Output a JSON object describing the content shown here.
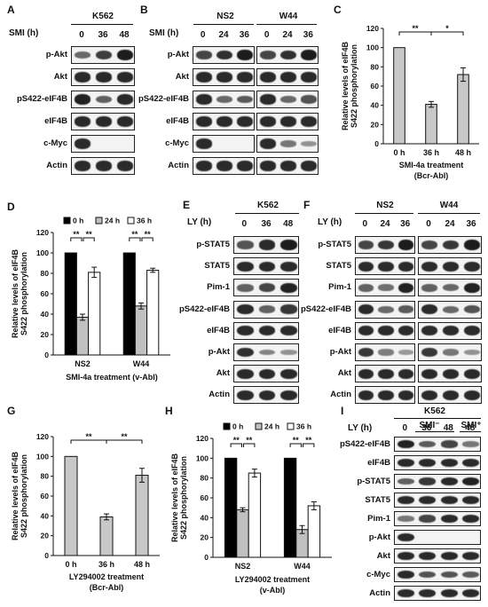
{
  "panels": {
    "A": {
      "letter": "A",
      "cell_line": "K562",
      "time_label": "SMI (h)",
      "times": [
        "0",
        "36",
        "48"
      ],
      "rows": [
        {
          "label": "p-Akt",
          "bands": [
            0.45,
            0.75,
            1.0
          ]
        },
        {
          "label": "Akt",
          "bands": [
            0.9,
            0.9,
            0.9
          ]
        },
        {
          "label": "pS422-eIF4B",
          "bands": [
            0.95,
            0.5,
            0.9
          ]
        },
        {
          "label": "eIF4B",
          "bands": [
            0.9,
            0.9,
            0.9
          ]
        },
        {
          "label": "c-Myc",
          "bands": [
            0.9,
            0,
            0
          ]
        },
        {
          "label": "Actin",
          "bands": [
            0.9,
            0.9,
            0.9
          ]
        }
      ]
    },
    "B": {
      "letter": "B",
      "time_label": "SMI (h)",
      "groups": [
        {
          "cell_line": "NS2",
          "times": [
            "0",
            "24",
            "36"
          ]
        },
        {
          "cell_line": "W44",
          "times": [
            "0",
            "24",
            "36"
          ]
        }
      ],
      "rows": [
        {
          "label": "p-Akt",
          "bands": [
            [
              0.7,
              0.85,
              1.0
            ],
            [
              0.7,
              0.85,
              1.0
            ]
          ]
        },
        {
          "label": "Akt",
          "bands": [
            [
              0.9,
              0.9,
              0.9
            ],
            [
              0.9,
              0.9,
              0.9
            ]
          ]
        },
        {
          "label": "pS422-eIF4B",
          "bands": [
            [
              0.9,
              0.45,
              0.55
            ],
            [
              0.9,
              0.45,
              0.6
            ]
          ]
        },
        {
          "label": "eIF4B",
          "bands": [
            [
              0.9,
              0.9,
              0.9
            ],
            [
              0.9,
              0.9,
              0.9
            ]
          ]
        },
        {
          "label": "c-Myc",
          "bands": [
            [
              0.9,
              0,
              0
            ],
            [
              0.9,
              0.35,
              0.15
            ]
          ]
        },
        {
          "label": "Actin",
          "bands": [
            [
              0.9,
              0.9,
              0.9
            ],
            [
              0.9,
              0.9,
              0.9
            ]
          ]
        }
      ]
    },
    "E": {
      "letter": "E",
      "cell_line": "K562",
      "time_label": "LY (h)",
      "times": [
        "0",
        "36",
        "48"
      ],
      "rows": [
        {
          "label": "p-STAT5",
          "bands": [
            0.6,
            0.9,
            1.0
          ]
        },
        {
          "label": "STAT5",
          "bands": [
            0.9,
            0.9,
            0.9
          ]
        },
        {
          "label": "Pim-1",
          "bands": [
            0.5,
            0.7,
            0.95
          ]
        },
        {
          "label": "pS422-eIF4B",
          "bands": [
            0.9,
            0.5,
            0.8
          ]
        },
        {
          "label": "eIF4B",
          "bands": [
            0.9,
            0.9,
            0.9
          ]
        },
        {
          "label": "p-Akt",
          "bands": [
            0.85,
            0.25,
            0.15
          ]
        },
        {
          "label": "Akt",
          "bands": [
            0.9,
            0.9,
            0.9
          ]
        },
        {
          "label": "Actin",
          "bands": [
            0.9,
            0.9,
            0.9
          ]
        }
      ]
    },
    "F": {
      "letter": "F",
      "time_label": "LY (h)",
      "groups": [
        {
          "cell_line": "NS2",
          "times": [
            "0",
            "24",
            "36"
          ]
        },
        {
          "cell_line": "W44",
          "times": [
            "0",
            "24",
            "36"
          ]
        }
      ],
      "rows": [
        {
          "label": "p-STAT5",
          "bands": [
            [
              0.7,
              0.8,
              1.0
            ],
            [
              0.7,
              0.8,
              1.0
            ]
          ]
        },
        {
          "label": "STAT5",
          "bands": [
            [
              0.9,
              0.9,
              0.9
            ],
            [
              0.9,
              0.9,
              0.9
            ]
          ]
        },
        {
          "label": "Pim-1",
          "bands": [
            [
              0.5,
              0.4,
              0.95
            ],
            [
              0.5,
              0.45,
              0.95
            ]
          ]
        },
        {
          "label": "pS422-eIF4B",
          "bands": [
            [
              0.9,
              0.45,
              0.55
            ],
            [
              0.9,
              0.45,
              0.6
            ]
          ]
        },
        {
          "label": "eIF4B",
          "bands": [
            [
              0.9,
              0.9,
              0.9
            ],
            [
              0.9,
              0.9,
              0.9
            ]
          ]
        },
        {
          "label": "p-Akt",
          "bands": [
            [
              0.8,
              0.3,
              0.1
            ],
            [
              0.8,
              0.35,
              0.15
            ]
          ]
        },
        {
          "label": "Akt",
          "bands": [
            [
              0.9,
              0.9,
              0.9
            ],
            [
              0.9,
              0.9,
              0.9
            ]
          ]
        },
        {
          "label": "Actin",
          "bands": [
            [
              0.9,
              0.9,
              0.9
            ],
            [
              0.9,
              0.9,
              0.9
            ]
          ]
        }
      ]
    },
    "I": {
      "letter": "I",
      "cell_line": "K562",
      "time_label": "LY (h)",
      "smi_minus": "SMI⁻",
      "smi_plus": "SMI⁺",
      "times": [
        "0",
        "36",
        "48",
        "48"
      ],
      "rows": [
        {
          "label": "pS422-eIF4B",
          "bands": [
            0.95,
            0.55,
            0.7,
            0.35
          ]
        },
        {
          "label": "eIF4B",
          "bands": [
            0.9,
            0.9,
            0.9,
            0.9
          ]
        },
        {
          "label": "p-STAT5",
          "bands": [
            0.5,
            0.8,
            0.9,
            0.95
          ]
        },
        {
          "label": "STAT5",
          "bands": [
            0.9,
            0.9,
            0.9,
            0.9
          ]
        },
        {
          "label": "Pim-1",
          "bands": [
            0.35,
            0.7,
            0.9,
            0.9
          ]
        },
        {
          "label": "p-Akt",
          "bands": [
            0.9,
            0,
            0,
            0
          ]
        },
        {
          "label": "Akt",
          "bands": [
            0.9,
            0.9,
            0.9,
            0.9
          ]
        },
        {
          "label": "c-Myc",
          "bands": [
            0.9,
            0.6,
            0.6,
            0.55
          ]
        },
        {
          "label": "Actin",
          "bands": [
            0.9,
            0.9,
            0.9,
            0.9
          ]
        }
      ]
    }
  },
  "chart_data": [
    {
      "id": "C",
      "letter": "C",
      "type": "bar",
      "categories": [
        "0 h",
        "36 h",
        "48 h"
      ],
      "values": [
        100,
        41,
        72
      ],
      "errors": [
        0,
        3,
        7
      ],
      "colors": [
        "#c8c8c8",
        "#c8c8c8",
        "#c8c8c8"
      ],
      "ylabel_line1": "Relative levels of eIF4B",
      "ylabel_line2": "S422 phosphorylation",
      "xlabel_line1": "SMI-4a treatment",
      "xlabel_line2": "(Bcr-Abl)",
      "ylim": [
        0,
        120
      ],
      "yticks": [
        0,
        20,
        40,
        60,
        80,
        100,
        120
      ],
      "significance": [
        {
          "from": 0,
          "to": 1,
          "label": "**"
        },
        {
          "from": 1,
          "to": 2,
          "label": "*"
        }
      ]
    },
    {
      "id": "D",
      "letter": "D",
      "type": "bar",
      "groups": [
        "NS2",
        "W44"
      ],
      "series": [
        {
          "name": "0 h",
          "color": "#000000",
          "values": [
            100,
            100
          ],
          "errors": [
            0,
            0
          ]
        },
        {
          "name": "24 h",
          "color": "#c0c0c0",
          "values": [
            37,
            48
          ],
          "errors": [
            3,
            3
          ]
        },
        {
          "name": "36 h",
          "color": "#ffffff",
          "values": [
            81,
            83
          ],
          "errors": [
            5,
            2
          ]
        }
      ],
      "ylabel_line1": "Relative levels of eIF4B",
      "ylabel_line2": "S422 phosphorylation",
      "xlabel": "SMI-4a treatment (v-Abl)",
      "ylim": [
        0,
        120
      ],
      "yticks": [
        0,
        20,
        40,
        60,
        80,
        100,
        120
      ],
      "legend_position": "top",
      "significance_label": "**"
    },
    {
      "id": "G",
      "letter": "G",
      "type": "bar",
      "categories": [
        "0 h",
        "36 h",
        "48 h"
      ],
      "values": [
        100,
        39,
        81
      ],
      "errors": [
        0,
        3,
        7
      ],
      "colors": [
        "#c8c8c8",
        "#c8c8c8",
        "#c8c8c8"
      ],
      "ylabel_line1": "Relative levels of eIF4B",
      "ylabel_line2": "S422 phosphorylation",
      "xlabel_line1": "LY294002 treatment",
      "xlabel_line2": "(Bcr-Abl)",
      "ylim": [
        0,
        120
      ],
      "yticks": [
        0,
        20,
        40,
        60,
        80,
        100,
        120
      ],
      "significance": [
        {
          "from": 0,
          "to": 1,
          "label": "**"
        },
        {
          "from": 1,
          "to": 2,
          "label": "**"
        }
      ]
    },
    {
      "id": "H",
      "letter": "H",
      "type": "bar",
      "groups": [
        "NS2",
        "W44"
      ],
      "series": [
        {
          "name": "0 h",
          "color": "#000000",
          "values": [
            100,
            100
          ],
          "errors": [
            0,
            0
          ]
        },
        {
          "name": "24 h",
          "color": "#c0c0c0",
          "values": [
            48,
            28
          ],
          "errors": [
            2,
            4
          ]
        },
        {
          "name": "36 h",
          "color": "#ffffff",
          "values": [
            85,
            52
          ],
          "errors": [
            4,
            4
          ]
        }
      ],
      "ylabel_line1": "Relative levels of eIF4B",
      "ylabel_line2": "S422 phosphorylation",
      "xlabel_line1": "LY294002 treatment",
      "xlabel_line2": "(v-Abl)",
      "ylim": [
        0,
        120
      ],
      "yticks": [
        0,
        20,
        40,
        60,
        80,
        100,
        120
      ],
      "legend_position": "top",
      "significance_label": "**"
    }
  ]
}
